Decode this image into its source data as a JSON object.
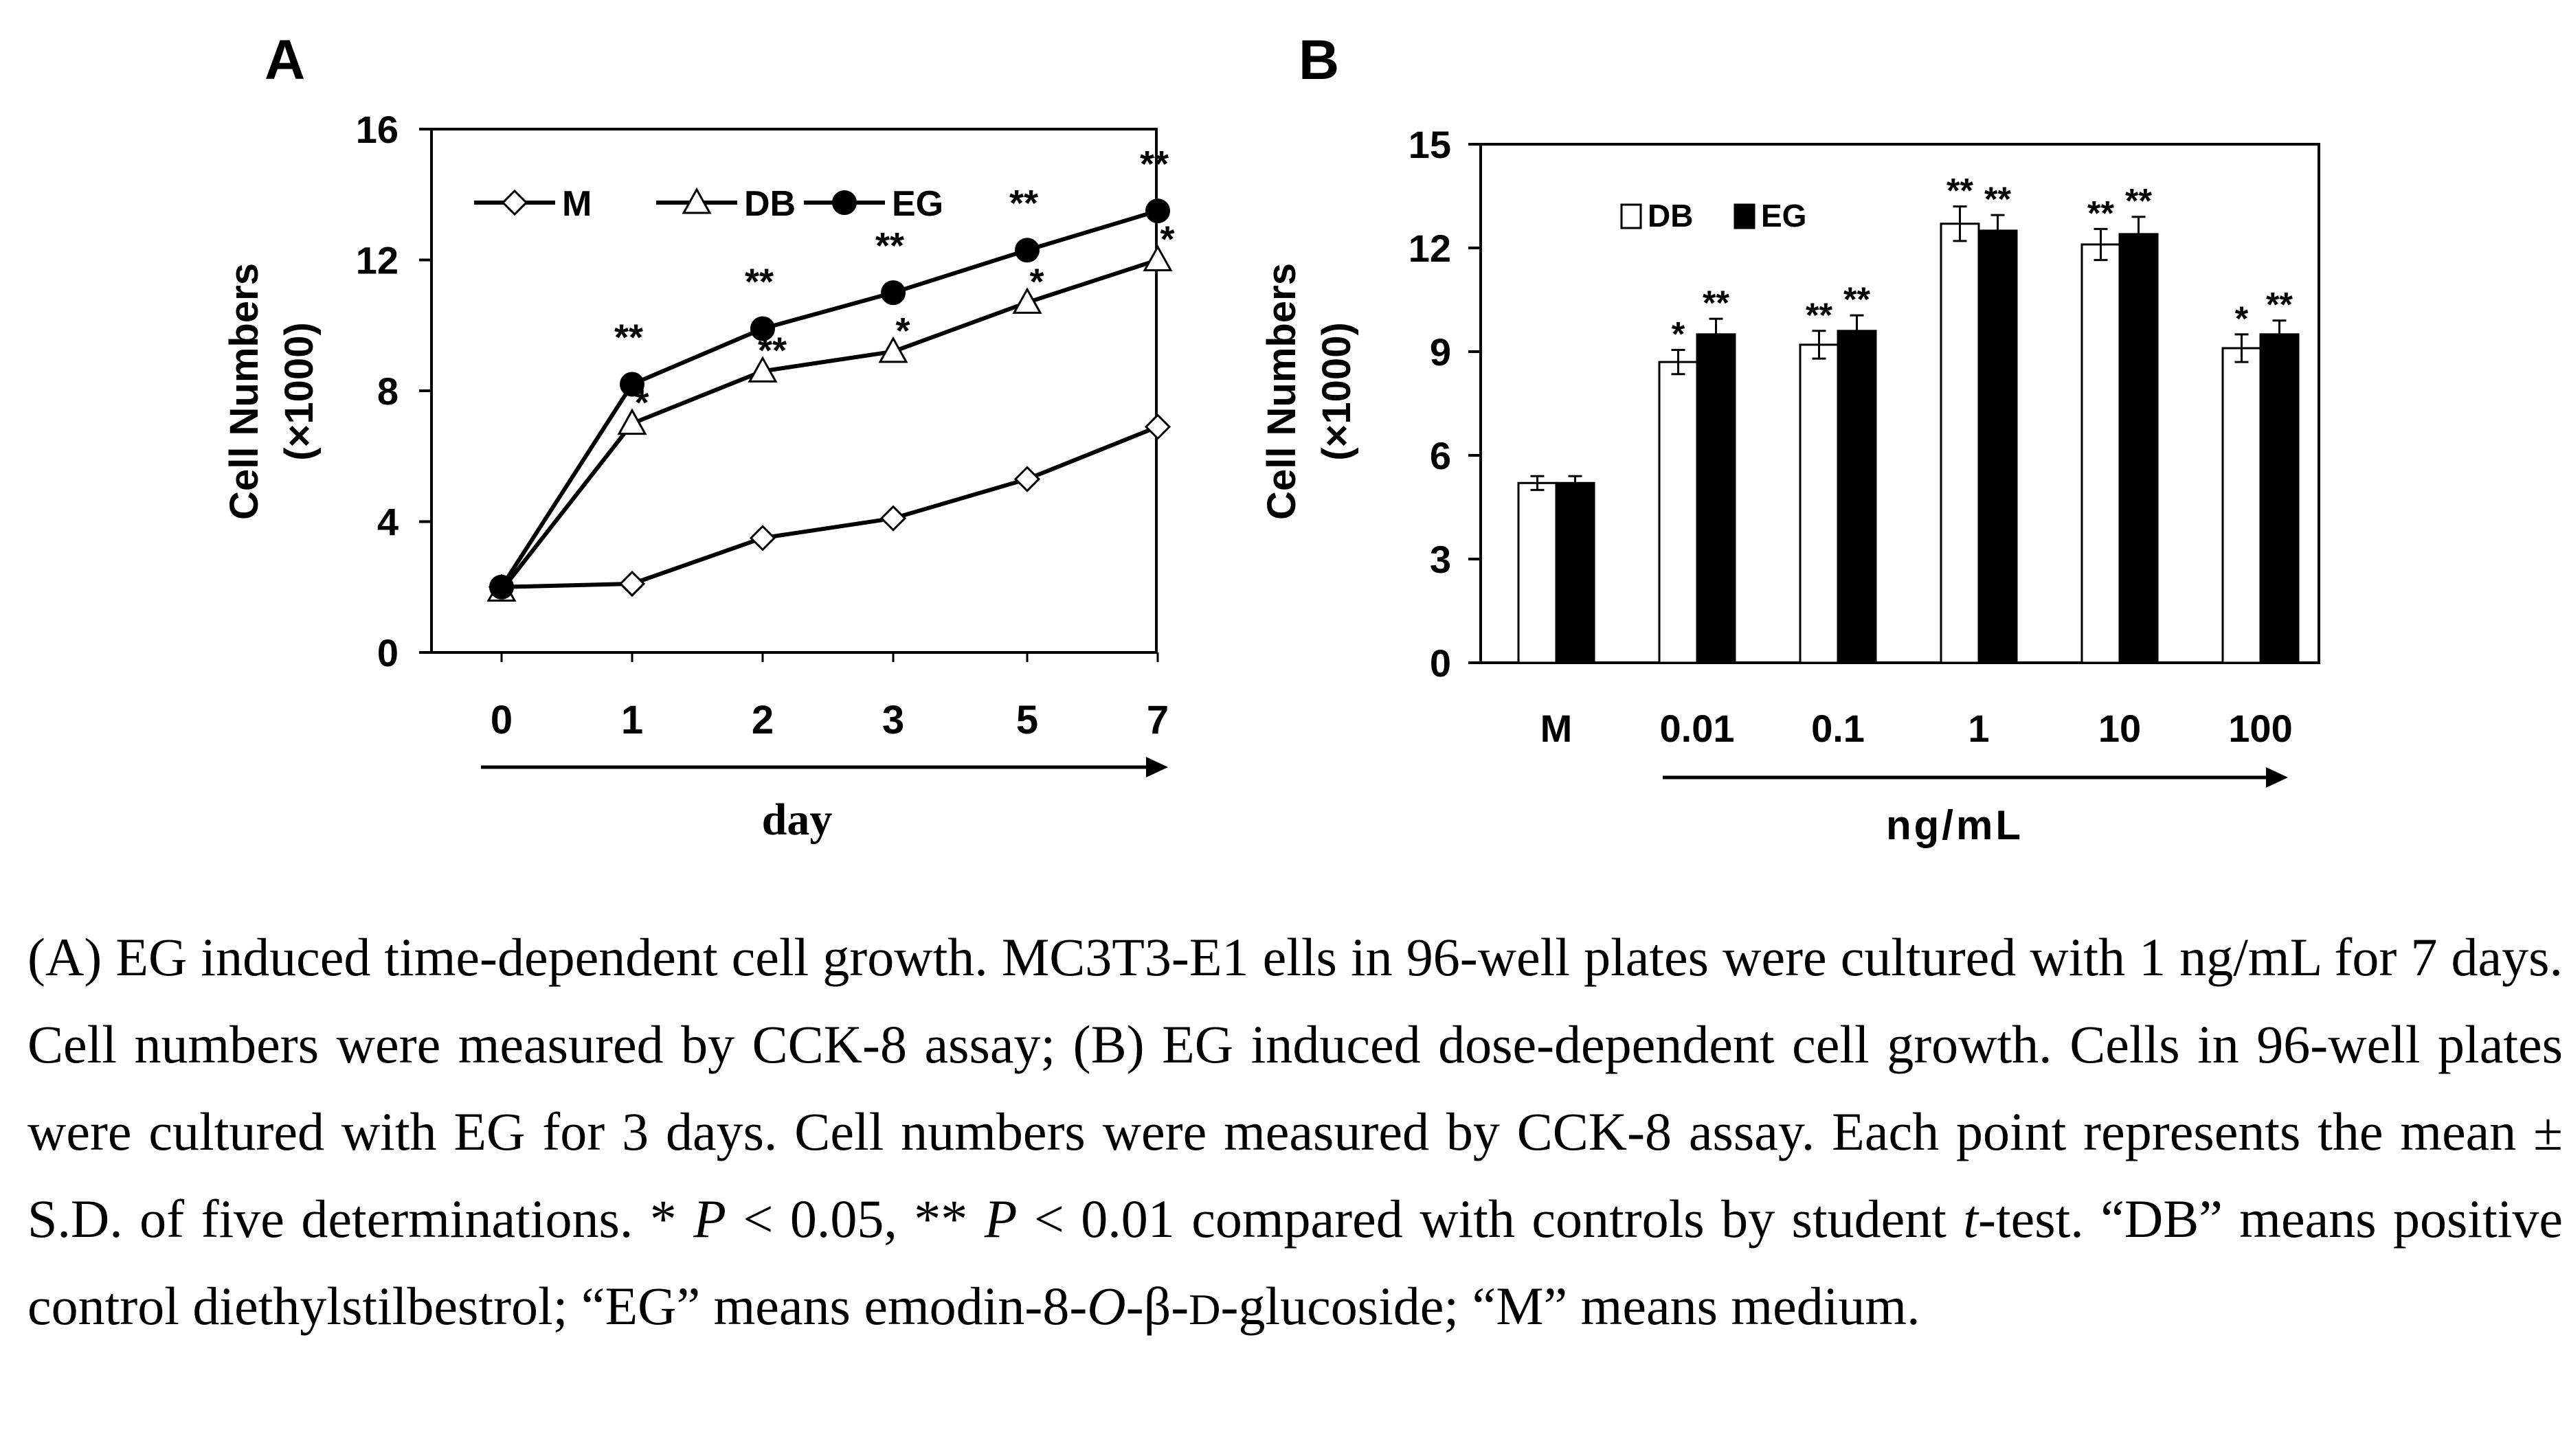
{
  "chart_data": [
    {
      "type": "line",
      "panel_label": "A",
      "xlabel": "day",
      "ylabel": "Cell Numbers",
      "ylabel_unit": "(×1000)",
      "categories": [
        "0",
        "1",
        "2",
        "3",
        "5",
        "7"
      ],
      "ylim": [
        0,
        16
      ],
      "yticks": [
        "0",
        "4",
        "8",
        "12",
        "16"
      ],
      "series": [
        {
          "name": "M",
          "marker": "diamond-open",
          "values": [
            2.0,
            2.1,
            3.5,
            4.1,
            5.3,
            6.9
          ],
          "sig": [
            "",
            "",
            "",
            "",
            "",
            ""
          ]
        },
        {
          "name": "DB",
          "marker": "triangle-open",
          "values": [
            1.9,
            7.0,
            8.6,
            9.2,
            10.7,
            12.0
          ],
          "sig": [
            "",
            "*",
            "**",
            "*",
            "*",
            "*"
          ]
        },
        {
          "name": "EG",
          "marker": "circle-filled",
          "values": [
            2.0,
            8.2,
            9.9,
            11.0,
            12.3,
            13.5
          ],
          "sig": [
            "",
            "**",
            "**",
            "**",
            "**",
            "**"
          ]
        }
      ]
    },
    {
      "type": "bar",
      "panel_label": "B",
      "xlabel": "ng/mL",
      "ylabel": "Cell Numbers",
      "ylabel_unit": "(×1000)",
      "categories": [
        "M",
        "0.01",
        "0.1",
        "1",
        "10",
        "100"
      ],
      "ylim": [
        0,
        15
      ],
      "yticks": [
        "0",
        "3",
        "6",
        "9",
        "12",
        "15"
      ],
      "series": [
        {
          "name": "DB",
          "fill": "#ffffff",
          "values": [
            5.2,
            8.7,
            9.2,
            12.7,
            12.1,
            9.1
          ],
          "errors": [
            0.2,
            0.35,
            0.4,
            0.5,
            0.45,
            0.4
          ],
          "sig": [
            "",
            "*",
            "**",
            "**",
            "**",
            "*"
          ]
        },
        {
          "name": "EG",
          "fill": "#000000",
          "values": [
            5.2,
            9.5,
            9.6,
            12.5,
            12.4,
            9.5
          ],
          "errors": [
            0.2,
            0.45,
            0.45,
            0.45,
            0.5,
            0.4
          ],
          "sig": [
            "",
            "**",
            "**",
            "**",
            "**",
            "**"
          ]
        }
      ]
    }
  ],
  "caption": {
    "part1": "(A) EG induced time-dependent cell growth. MC3T3-E1 ells in 96-well plates were cultured with 1 ng/mL for 7 days. Cell numbers were measured by CCK-8 assay; (B) EG induced dose-dependent cell growth. Cells in 96-well plates were cultured with EG for 3 days. Cell numbers were measured by CCK-8 assay. Each point represents the mean ± S.D. of five determinations. * ",
    "p1": "P",
    "part2": " < 0.05, ** ",
    "p2": "P",
    "part3": " < 0.01 compared with controls by student ",
    "t": "t",
    "part4": "-test. “DB” means positive control diethylstilbestrol; “EG” means emodin-8-",
    "o": "O",
    "part5": "-β-",
    "d": "D",
    "part6": "-glucoside; “M” means medium."
  }
}
